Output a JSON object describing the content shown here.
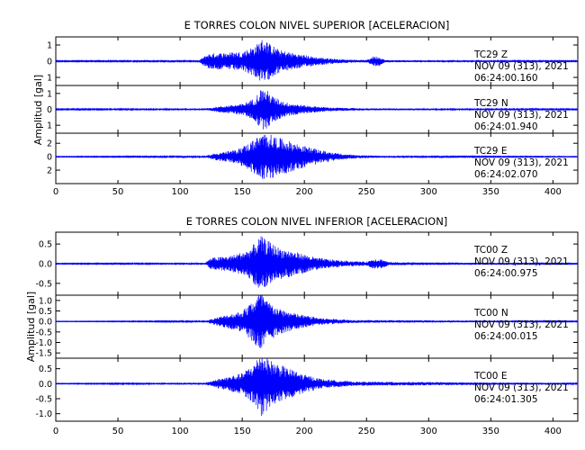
{
  "chart_data": [
    {
      "type": "line",
      "title": "E TORRES COLON NIVEL SUPERIOR [ACELERACION]",
      "ylabel": "Amplitud [gal]",
      "xlim": [
        0,
        420
      ],
      "xticks": [
        0,
        50,
        100,
        150,
        200,
        250,
        300,
        350,
        400
      ],
      "color": "#0000ff",
      "traces": [
        {
          "station": "TC29",
          "component": "Z",
          "date": "NOV 09 (313), 2021",
          "time": "06:24:00.160",
          "ylim": [
            -1.5,
            1.5
          ],
          "yticks": [
            -1,
            0,
            1
          ],
          "ytick_labels": [
            "1",
            "0",
            "1"
          ],
          "peak": 1.4,
          "envelope": [
            [
              0,
              0.03
            ],
            [
              115,
              0.04
            ],
            [
              122,
              0.45
            ],
            [
              128,
              0.5
            ],
            [
              140,
              0.55
            ],
            [
              150,
              0.6
            ],
            [
              160,
              0.95
            ],
            [
              167,
              1.45
            ],
            [
              172,
              1.1
            ],
            [
              180,
              0.7
            ],
            [
              195,
              0.45
            ],
            [
              210,
              0.25
            ],
            [
              230,
              0.12
            ],
            [
              250,
              0.07
            ],
            [
              255,
              0.3
            ],
            [
              260,
              0.3
            ],
            [
              265,
              0.07
            ],
            [
              300,
              0.05
            ],
            [
              420,
              0.03
            ]
          ]
        },
        {
          "station": "TC29",
          "component": "N",
          "date": "NOV 09 (313), 2021",
          "time": "06:24:01.940",
          "ylim": [
            -1.5,
            1.5
          ],
          "yticks": [
            -1,
            0,
            1
          ],
          "ytick_labels": [
            "1",
            "0",
            "1"
          ],
          "peak": 1.3,
          "envelope": [
            [
              0,
              0.03
            ],
            [
              120,
              0.05
            ],
            [
              128,
              0.15
            ],
            [
              150,
              0.35
            ],
            [
              160,
              0.7
            ],
            [
              165,
              1.3
            ],
            [
              170,
              1.2
            ],
            [
              175,
              0.8
            ],
            [
              185,
              0.45
            ],
            [
              200,
              0.25
            ],
            [
              220,
              0.12
            ],
            [
              250,
              0.06
            ],
            [
              420,
              0.03
            ]
          ]
        },
        {
          "station": "TC29",
          "component": "E",
          "date": "NOV 09 (313), 2021",
          "time": "06:24:02.070",
          "ylim": [
            -4,
            3.5
          ],
          "yticks": [
            -2,
            0,
            2
          ],
          "ytick_labels": [
            "2",
            "0",
            "2"
          ],
          "peak": 3.5,
          "envelope": [
            [
              0,
              0.05
            ],
            [
              120,
              0.1
            ],
            [
              130,
              0.6
            ],
            [
              145,
              1.0
            ],
            [
              155,
              2.0
            ],
            [
              165,
              3.3
            ],
            [
              170,
              3.5
            ],
            [
              180,
              2.8
            ],
            [
              190,
              2.2
            ],
            [
              200,
              1.6
            ],
            [
              215,
              0.9
            ],
            [
              230,
              0.4
            ],
            [
              250,
              0.2
            ],
            [
              270,
              0.1
            ],
            [
              420,
              0.05
            ]
          ]
        }
      ]
    },
    {
      "type": "line",
      "title": "E TORRES COLON NIVEL INFERIOR [ACELERACION]",
      "ylabel": "Amplitud [gal]",
      "xlim": [
        0,
        420
      ],
      "xticks": [
        0,
        50,
        100,
        150,
        200,
        250,
        300,
        350,
        400
      ],
      "color": "#0000ff",
      "traces": [
        {
          "station": "TC00",
          "component": "Z",
          "date": "NOV 09 (313), 2021",
          "time": "06:24:00.975",
          "ylim": [
            -0.8,
            0.8
          ],
          "yticks": [
            -0.5,
            0,
            0.5
          ],
          "ytick_labels": [
            "-0.5",
            "0.0",
            "0.5"
          ],
          "peak": 0.7,
          "envelope": [
            [
              0,
              0.01
            ],
            [
              120,
              0.02
            ],
            [
              125,
              0.15
            ],
            [
              140,
              0.2
            ],
            [
              155,
              0.35
            ],
            [
              165,
              0.7
            ],
            [
              170,
              0.6
            ],
            [
              180,
              0.4
            ],
            [
              195,
              0.28
            ],
            [
              210,
              0.15
            ],
            [
              230,
              0.08
            ],
            [
              250,
              0.05
            ],
            [
              255,
              0.12
            ],
            [
              262,
              0.12
            ],
            [
              268,
              0.04
            ],
            [
              420,
              0.01
            ]
          ]
        },
        {
          "station": "TC00",
          "component": "N",
          "date": "NOV 09 (313), 2021",
          "time": "06:24:00.015",
          "ylim": [
            -1.75,
            1.25
          ],
          "yticks": [
            -1.5,
            -1.0,
            -0.5,
            0,
            0.5,
            1.0
          ],
          "ytick_labels": [
            "-1.5",
            "-1.0",
            "-0.5",
            "0.0",
            "0.5",
            "1.0"
          ],
          "peak": 1.5,
          "envelope": [
            [
              0,
              0.01
            ],
            [
              120,
              0.03
            ],
            [
              130,
              0.2
            ],
            [
              150,
              0.5
            ],
            [
              160,
              1.1
            ],
            [
              165,
              1.5
            ],
            [
              170,
              1.0
            ],
            [
              180,
              0.6
            ],
            [
              195,
              0.35
            ],
            [
              215,
              0.15
            ],
            [
              240,
              0.07
            ],
            [
              420,
              0.02
            ]
          ]
        },
        {
          "station": "TC00",
          "component": "E",
          "date": "NOV 09 (313), 2021",
          "time": "06:24:01.305",
          "ylim": [
            -1.25,
            0.85
          ],
          "yticks": [
            -1.0,
            -0.5,
            0,
            0.5
          ],
          "ytick_labels": [
            "-1.0",
            "-0.5",
            "0.0",
            "0.5"
          ],
          "peak": 1.1,
          "envelope": [
            [
              0,
              0.01
            ],
            [
              120,
              0.03
            ],
            [
              130,
              0.15
            ],
            [
              150,
              0.35
            ],
            [
              160,
              0.7
            ],
            [
              165,
              1.1
            ],
            [
              172,
              0.8
            ],
            [
              185,
              0.55
            ],
            [
              200,
              0.3
            ],
            [
              215,
              0.15
            ],
            [
              240,
              0.07
            ],
            [
              420,
              0.02
            ]
          ]
        }
      ]
    }
  ]
}
